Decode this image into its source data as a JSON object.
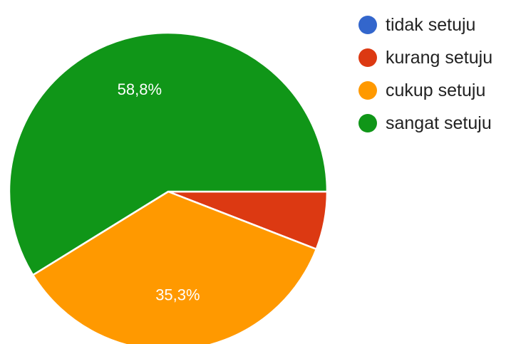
{
  "chart_data": {
    "type": "pie",
    "legend_position": "right",
    "slices": [
      {
        "label": "tidak setuju",
        "value": 0,
        "value_label": "",
        "color": "#3366cc"
      },
      {
        "label": "kurang setuju",
        "value": 5.9,
        "value_label": "",
        "color": "#dc3912"
      },
      {
        "label": "cukup setuju",
        "value": 35.3,
        "value_label": "35,3%",
        "color": "#ff9900"
      },
      {
        "label": "sangat setuju",
        "value": 58.8,
        "value_label": "58,8%",
        "color": "#109618"
      }
    ]
  }
}
